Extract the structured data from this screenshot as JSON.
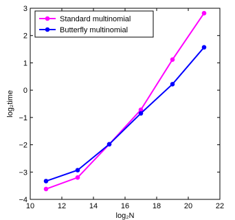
{
  "chart_data": {
    "type": "line",
    "xlabel": "log₂N",
    "ylabel": "log₂time",
    "xlim": [
      10,
      22
    ],
    "ylim": [
      -4,
      3
    ],
    "xticks": [
      "10",
      "12",
      "14",
      "16",
      "18",
      "20",
      "22"
    ],
    "yticks": [
      "-4",
      "-3",
      "-2",
      "-1",
      "0",
      "1",
      "2",
      "3"
    ],
    "x": [
      11,
      13,
      15,
      17,
      19,
      21
    ],
    "series": [
      {
        "name": "Standard multinomial",
        "color": "#ff00ff",
        "values": [
          -3.62,
          -3.2,
          -1.98,
          -0.72,
          1.12,
          2.82
        ]
      },
      {
        "name": "Butterfly multinomial",
        "color": "#0000ff",
        "values": [
          -3.33,
          -2.93,
          -1.98,
          -0.85,
          0.22,
          1.57
        ]
      }
    ],
    "legend_position": "top-left",
    "grid": false
  }
}
